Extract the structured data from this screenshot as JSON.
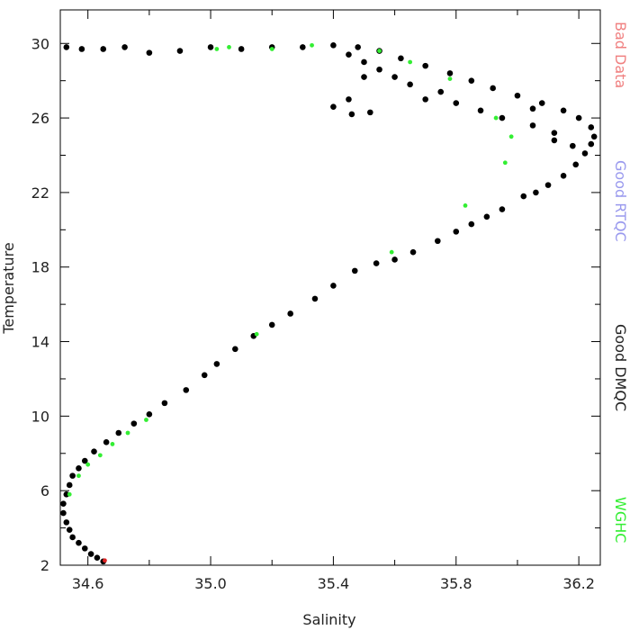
{
  "chart_data": {
    "type": "scatter",
    "title": "",
    "xlabel": "Salinity",
    "ylabel": "Temperature",
    "xlim": [
      34.51,
      36.27
    ],
    "ylim": [
      2,
      31.8
    ],
    "x_ticks": [
      34.6,
      35.0,
      35.4,
      35.8,
      36.2
    ],
    "x_tick_labels": [
      "34.6",
      "35.0",
      "35.4",
      "35.8",
      "36.2"
    ],
    "y_ticks": [
      2,
      6,
      10,
      14,
      18,
      22,
      26,
      30
    ],
    "y_tick_labels": [
      "2",
      "6",
      "10",
      "14",
      "18",
      "22",
      "26",
      "30"
    ],
    "grid": false,
    "legend_position": "right (vertical text)",
    "legend": [
      {
        "label": "Bad Data",
        "color": "#f08080"
      },
      {
        "label": "Good RTQC",
        "color": "#9999ee"
      },
      {
        "label": "Good DMQC",
        "color": "#222222"
      },
      {
        "label": "WGHC",
        "color": "#33ee33"
      }
    ],
    "series": [
      {
        "name": "Good DMQC",
        "color": "#000000",
        "points": [
          [
            34.65,
            2.2
          ],
          [
            34.63,
            2.4
          ],
          [
            34.61,
            2.6
          ],
          [
            34.59,
            2.9
          ],
          [
            34.57,
            3.2
          ],
          [
            34.55,
            3.5
          ],
          [
            34.54,
            3.9
          ],
          [
            34.53,
            4.3
          ],
          [
            34.52,
            4.8
          ],
          [
            34.52,
            5.3
          ],
          [
            34.53,
            5.8
          ],
          [
            34.54,
            6.3
          ],
          [
            34.55,
            6.8
          ],
          [
            34.57,
            7.2
          ],
          [
            34.59,
            7.6
          ],
          [
            34.62,
            8.1
          ],
          [
            34.66,
            8.6
          ],
          [
            34.7,
            9.1
          ],
          [
            34.75,
            9.6
          ],
          [
            34.8,
            10.1
          ],
          [
            34.85,
            10.7
          ],
          [
            34.92,
            11.4
          ],
          [
            34.98,
            12.2
          ],
          [
            35.02,
            12.8
          ],
          [
            35.08,
            13.6
          ],
          [
            35.14,
            14.3
          ],
          [
            35.2,
            14.9
          ],
          [
            35.26,
            15.5
          ],
          [
            35.34,
            16.3
          ],
          [
            35.4,
            17.0
          ],
          [
            35.47,
            17.8
          ],
          [
            35.54,
            18.2
          ],
          [
            35.6,
            18.4
          ],
          [
            35.66,
            18.8
          ],
          [
            35.74,
            19.4
          ],
          [
            35.8,
            19.9
          ],
          [
            35.85,
            20.3
          ],
          [
            35.9,
            20.7
          ],
          [
            35.95,
            21.1
          ],
          [
            36.02,
            21.8
          ],
          [
            36.06,
            22.0
          ],
          [
            36.1,
            22.4
          ],
          [
            36.15,
            22.9
          ],
          [
            36.19,
            23.5
          ],
          [
            36.22,
            24.1
          ],
          [
            36.24,
            24.6
          ],
          [
            36.25,
            25.0
          ],
          [
            36.24,
            25.5
          ],
          [
            36.2,
            26.0
          ],
          [
            36.15,
            26.4
          ],
          [
            36.08,
            26.8
          ],
          [
            36.0,
            27.2
          ],
          [
            35.92,
            27.6
          ],
          [
            35.85,
            28.0
          ],
          [
            35.78,
            28.4
          ],
          [
            35.7,
            28.8
          ],
          [
            35.62,
            29.2
          ],
          [
            35.55,
            29.6
          ],
          [
            35.48,
            29.8
          ],
          [
            35.4,
            29.9
          ],
          [
            35.3,
            29.8
          ],
          [
            35.2,
            29.8
          ],
          [
            35.1,
            29.7
          ],
          [
            35.0,
            29.8
          ],
          [
            34.9,
            29.6
          ],
          [
            34.8,
            29.5
          ],
          [
            34.72,
            29.8
          ],
          [
            34.65,
            29.7
          ],
          [
            34.58,
            29.7
          ],
          [
            34.53,
            29.8
          ],
          [
            35.45,
            29.4
          ],
          [
            35.5,
            29.0
          ],
          [
            35.55,
            28.6
          ],
          [
            35.6,
            28.2
          ],
          [
            35.65,
            27.8
          ],
          [
            35.5,
            28.2
          ],
          [
            35.45,
            27.0
          ],
          [
            35.4,
            26.6
          ],
          [
            35.46,
            26.2
          ],
          [
            35.52,
            26.3
          ],
          [
            35.7,
            27.0
          ],
          [
            35.75,
            27.4
          ],
          [
            35.8,
            26.8
          ],
          [
            35.88,
            26.4
          ],
          [
            35.95,
            26.0
          ],
          [
            36.05,
            25.6
          ],
          [
            36.12,
            25.2
          ],
          [
            36.18,
            24.5
          ],
          [
            36.12,
            24.8
          ],
          [
            36.05,
            26.5
          ]
        ]
      },
      {
        "name": "WGHC",
        "color": "#33ee33",
        "points": [
          [
            34.54,
            5.8
          ],
          [
            34.57,
            6.8
          ],
          [
            34.6,
            7.4
          ],
          [
            34.64,
            7.9
          ],
          [
            34.68,
            8.5
          ],
          [
            34.73,
            9.1
          ],
          [
            34.79,
            9.8
          ],
          [
            35.02,
            29.7
          ],
          [
            35.06,
            29.8
          ],
          [
            35.15,
            14.4
          ],
          [
            35.2,
            29.7
          ],
          [
            35.33,
            29.9
          ],
          [
            35.55,
            29.6
          ],
          [
            35.59,
            18.8
          ],
          [
            35.65,
            29.0
          ],
          [
            35.78,
            28.1
          ],
          [
            35.83,
            21.3
          ],
          [
            35.93,
            26.0
          ],
          [
            35.96,
            23.6
          ],
          [
            35.98,
            25.0
          ]
        ]
      },
      {
        "name": "Bad Data",
        "color": "#dd2222",
        "points": [
          [
            34.655,
            2.25
          ]
        ]
      }
    ]
  }
}
